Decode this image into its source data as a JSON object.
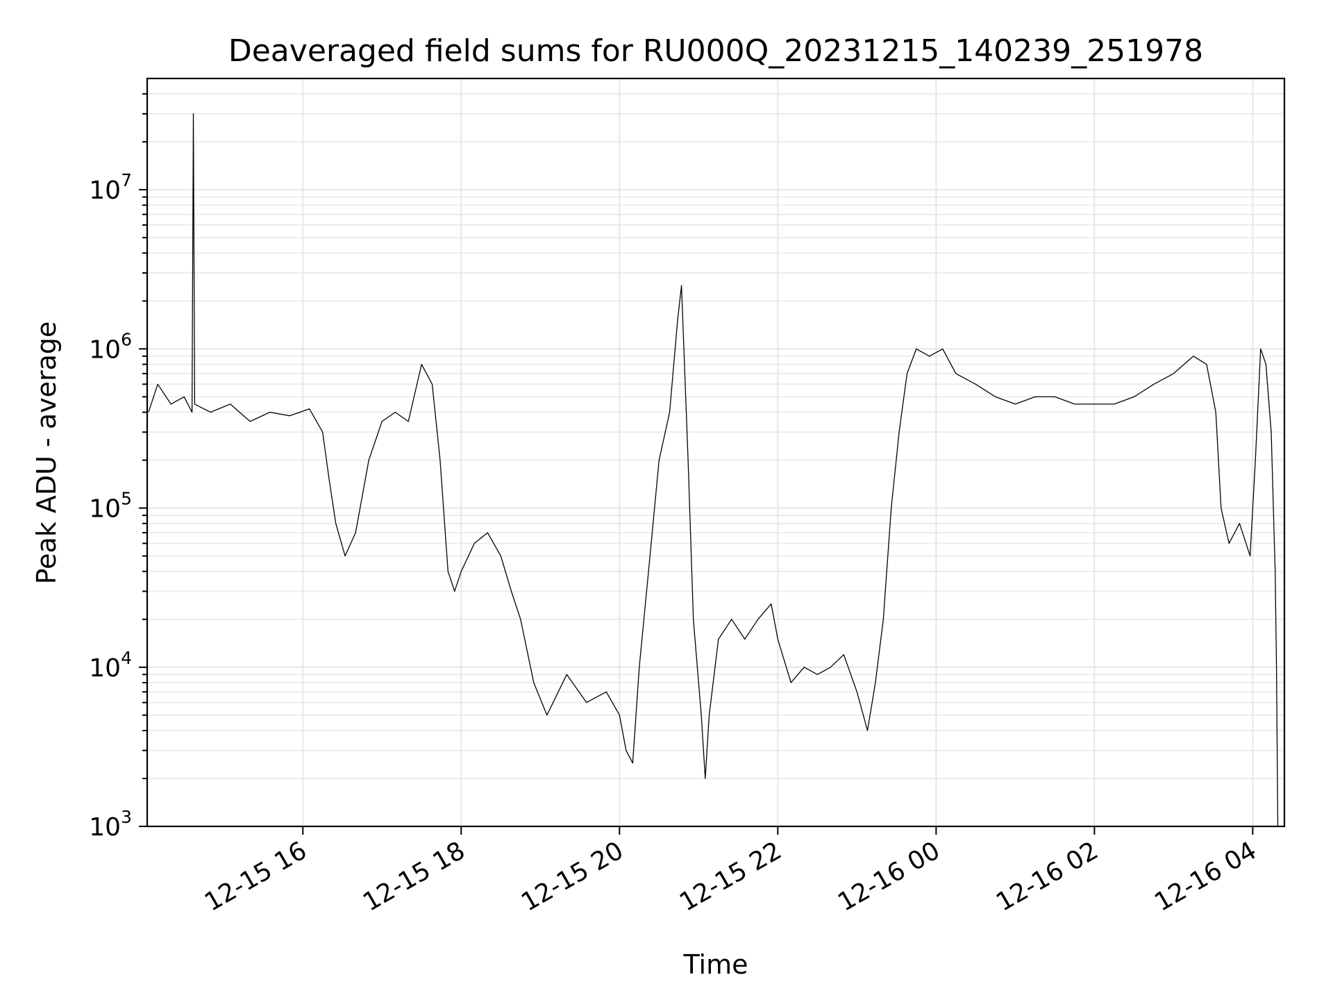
{
  "chart_data": {
    "type": "line",
    "title": "Deaveraged field sums for RU000Q_20231215_140239_251978",
    "xlabel": "Time",
    "ylabel": "Peak ADU - average",
    "yscale": "log",
    "ylim": [
      1000,
      50000000
    ],
    "y_ticks": [
      {
        "value": 1000,
        "base": "10",
        "exp": "3"
      },
      {
        "value": 10000,
        "base": "10",
        "exp": "4"
      },
      {
        "value": 100000,
        "base": "10",
        "exp": "5"
      },
      {
        "value": 1000000,
        "base": "10",
        "exp": "6"
      },
      {
        "value": 10000000,
        "base": "10",
        "exp": "7"
      }
    ],
    "xlim": [
      "2023-12-15 14:02",
      "2023-12-16 04:24"
    ],
    "x_ticks": [
      {
        "value": "2023-12-15 16:00",
        "label": "12-15 16"
      },
      {
        "value": "2023-12-15 18:00",
        "label": "12-15 18"
      },
      {
        "value": "2023-12-15 20:00",
        "label": "12-15 20"
      },
      {
        "value": "2023-12-15 22:00",
        "label": "12-15 22"
      },
      {
        "value": "2023-12-16 00:00",
        "label": "12-16 00"
      },
      {
        "value": "2023-12-16 02:00",
        "label": "12-16 02"
      },
      {
        "value": "2023-12-16 04:00",
        "label": "12-16 04"
      }
    ],
    "grid": true,
    "series": [
      {
        "color": "#000000",
        "points": [
          [
            "2023-12-15 14:03",
            400000
          ],
          [
            "2023-12-15 14:10",
            600000
          ],
          [
            "2023-12-15 14:20",
            450000
          ],
          [
            "2023-12-15 14:30",
            500000
          ],
          [
            "2023-12-15 14:36",
            400000
          ],
          [
            "2023-12-15 14:37",
            30000000
          ],
          [
            "2023-12-15 14:38",
            450000
          ],
          [
            "2023-12-15 14:50",
            400000
          ],
          [
            "2023-12-15 15:05",
            450000
          ],
          [
            "2023-12-15 15:20",
            350000
          ],
          [
            "2023-12-15 15:35",
            400000
          ],
          [
            "2023-12-15 15:50",
            380000
          ],
          [
            "2023-12-15 16:05",
            420000
          ],
          [
            "2023-12-15 16:15",
            300000
          ],
          [
            "2023-12-15 16:20",
            150000
          ],
          [
            "2023-12-15 16:25",
            80000
          ],
          [
            "2023-12-15 16:32",
            50000
          ],
          [
            "2023-12-15 16:40",
            70000
          ],
          [
            "2023-12-15 16:50",
            200000
          ],
          [
            "2023-12-15 17:00",
            350000
          ],
          [
            "2023-12-15 17:10",
            400000
          ],
          [
            "2023-12-15 17:20",
            350000
          ],
          [
            "2023-12-15 17:30",
            800000
          ],
          [
            "2023-12-15 17:38",
            600000
          ],
          [
            "2023-12-15 17:44",
            200000
          ],
          [
            "2023-12-15 17:50",
            40000
          ],
          [
            "2023-12-15 17:55",
            30000
          ],
          [
            "2023-12-15 18:00",
            40000
          ],
          [
            "2023-12-15 18:10",
            60000
          ],
          [
            "2023-12-15 18:20",
            70000
          ],
          [
            "2023-12-15 18:30",
            50000
          ],
          [
            "2023-12-15 18:38",
            30000
          ],
          [
            "2023-12-15 18:45",
            20000
          ],
          [
            "2023-12-15 18:55",
            8000
          ],
          [
            "2023-12-15 19:05",
            5000
          ],
          [
            "2023-12-15 19:20",
            9000
          ],
          [
            "2023-12-15 19:35",
            6000
          ],
          [
            "2023-12-15 19:50",
            7000
          ],
          [
            "2023-12-15 20:00",
            5000
          ],
          [
            "2023-12-15 20:05",
            3000
          ],
          [
            "2023-12-15 20:10",
            2500
          ],
          [
            "2023-12-15 20:15",
            10000
          ],
          [
            "2023-12-15 20:22",
            40000
          ],
          [
            "2023-12-15 20:30",
            200000
          ],
          [
            "2023-12-15 20:38",
            400000
          ],
          [
            "2023-12-15 20:44",
            1500000
          ],
          [
            "2023-12-15 20:47",
            2500000
          ],
          [
            "2023-12-15 20:52",
            200000
          ],
          [
            "2023-12-15 20:56",
            20000
          ],
          [
            "2023-12-15 21:02",
            5000
          ],
          [
            "2023-12-15 21:05",
            2000
          ],
          [
            "2023-12-15 21:08",
            5000
          ],
          [
            "2023-12-15 21:15",
            15000
          ],
          [
            "2023-12-15 21:25",
            20000
          ],
          [
            "2023-12-15 21:35",
            15000
          ],
          [
            "2023-12-15 21:45",
            20000
          ],
          [
            "2023-12-15 21:55",
            25000
          ],
          [
            "2023-12-15 22:00",
            15000
          ],
          [
            "2023-12-15 22:10",
            8000
          ],
          [
            "2023-12-15 22:20",
            10000
          ],
          [
            "2023-12-15 22:30",
            9000
          ],
          [
            "2023-12-15 22:40",
            10000
          ],
          [
            "2023-12-15 22:50",
            12000
          ],
          [
            "2023-12-15 23:00",
            7000
          ],
          [
            "2023-12-15 23:08",
            4000
          ],
          [
            "2023-12-15 23:14",
            8000
          ],
          [
            "2023-12-15 23:20",
            20000
          ],
          [
            "2023-12-15 23:26",
            100000
          ],
          [
            "2023-12-15 23:32",
            300000
          ],
          [
            "2023-12-15 23:38",
            700000
          ],
          [
            "2023-12-15 23:45",
            1000000
          ],
          [
            "2023-12-15 23:55",
            900000
          ],
          [
            "2023-12-16 00:05",
            1000000
          ],
          [
            "2023-12-16 00:15",
            700000
          ],
          [
            "2023-12-16 00:30",
            600000
          ],
          [
            "2023-12-16 00:45",
            500000
          ],
          [
            "2023-12-16 01:00",
            450000
          ],
          [
            "2023-12-16 01:15",
            500000
          ],
          [
            "2023-12-16 01:30",
            500000
          ],
          [
            "2023-12-16 01:45",
            450000
          ],
          [
            "2023-12-16 02:00",
            450000
          ],
          [
            "2023-12-16 02:15",
            450000
          ],
          [
            "2023-12-16 02:30",
            500000
          ],
          [
            "2023-12-16 02:45",
            600000
          ],
          [
            "2023-12-16 03:00",
            700000
          ],
          [
            "2023-12-16 03:15",
            900000
          ],
          [
            "2023-12-16 03:25",
            800000
          ],
          [
            "2023-12-16 03:32",
            400000
          ],
          [
            "2023-12-16 03:36",
            100000
          ],
          [
            "2023-12-16 03:42",
            60000
          ],
          [
            "2023-12-16 03:50",
            80000
          ],
          [
            "2023-12-16 03:58",
            50000
          ],
          [
            "2023-12-16 04:02",
            200000
          ],
          [
            "2023-12-16 04:06",
            1000000
          ],
          [
            "2023-12-16 04:10",
            800000
          ],
          [
            "2023-12-16 04:14",
            300000
          ],
          [
            "2023-12-16 04:17",
            40000
          ],
          [
            "2023-12-16 04:18",
            10000
          ],
          [
            "2023-12-16 04:19",
            1000
          ]
        ]
      }
    ]
  }
}
